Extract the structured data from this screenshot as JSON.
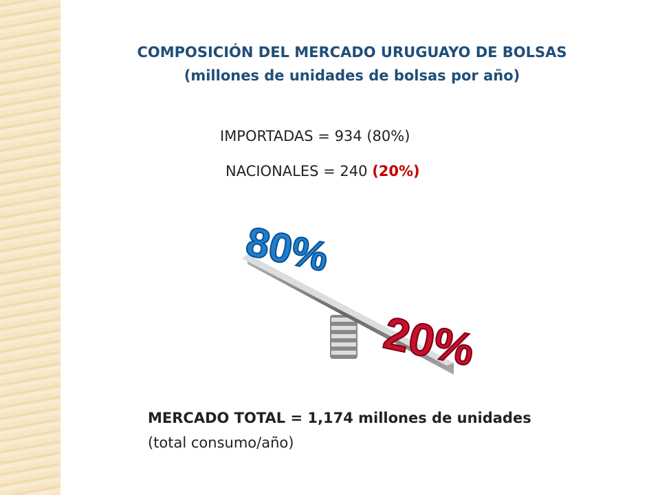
{
  "title": [
    "COMPOSICIÓN DEL MERCADO URUGUAYO DE BOLSAS",
    "(millones de unidades de bolsas por año)"
  ],
  "lines": [
    {
      "label": "IMPORTADAS = 934",
      "share": "(80%)"
    },
    {
      "label": "NACIONALES = 240",
      "share": "(20%)"
    }
  ],
  "illustration": {
    "high": "80%",
    "low": "20%"
  },
  "total": {
    "text": "MERCADO TOTAL = 1,174 millones de unidades",
    "note": "(total consumo/año)"
  }
}
